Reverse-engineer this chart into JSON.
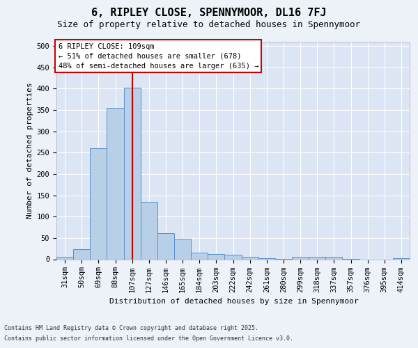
{
  "title1": "6, RIPLEY CLOSE, SPENNYMOOR, DL16 7FJ",
  "title2": "Size of property relative to detached houses in Spennymoor",
  "xlabel": "Distribution of detached houses by size in Spennymoor",
  "ylabel": "Number of detached properties",
  "categories": [
    "31sqm",
    "50sqm",
    "69sqm",
    "88sqm",
    "107sqm",
    "127sqm",
    "146sqm",
    "165sqm",
    "184sqm",
    "203sqm",
    "222sqm",
    "242sqm",
    "261sqm",
    "280sqm",
    "299sqm",
    "318sqm",
    "337sqm",
    "357sqm",
    "376sqm",
    "395sqm",
    "414sqm"
  ],
  "values": [
    5,
    23,
    260,
    355,
    403,
    135,
    62,
    48,
    16,
    13,
    10,
    6,
    2,
    1,
    5,
    5,
    5,
    1,
    0,
    0,
    2
  ],
  "bar_color": "#b8cfe8",
  "bar_edge_color": "#5b8fcb",
  "ylim_max": 510,
  "yticks": [
    0,
    50,
    100,
    150,
    200,
    250,
    300,
    350,
    400,
    450,
    500
  ],
  "annotation_line1": "6 RIPLEY CLOSE: 109sqm",
  "annotation_line2": "← 51% of detached houses are smaller (678)",
  "annotation_line3": "48% of semi-detached houses are larger (635) →",
  "vline_x": 4,
  "vline_color": "#cc0000",
  "ann_box_edge": "#cc0000",
  "ann_box_face": "#ffffff",
  "footer1": "Contains HM Land Registry data © Crown copyright and database right 2025.",
  "footer2": "Contains public sector information licensed under the Open Government Licence v3.0.",
  "fig_bg": "#edf2f9",
  "plot_bg": "#dce5f4",
  "grid_color": "#ffffff",
  "title1_fontsize": 11,
  "title2_fontsize": 9,
  "ylabel_fontsize": 8,
  "xlabel_fontsize": 8,
  "tick_fontsize": 7.5,
  "ann_fontsize": 7.5,
  "footer_fontsize": 6.0
}
